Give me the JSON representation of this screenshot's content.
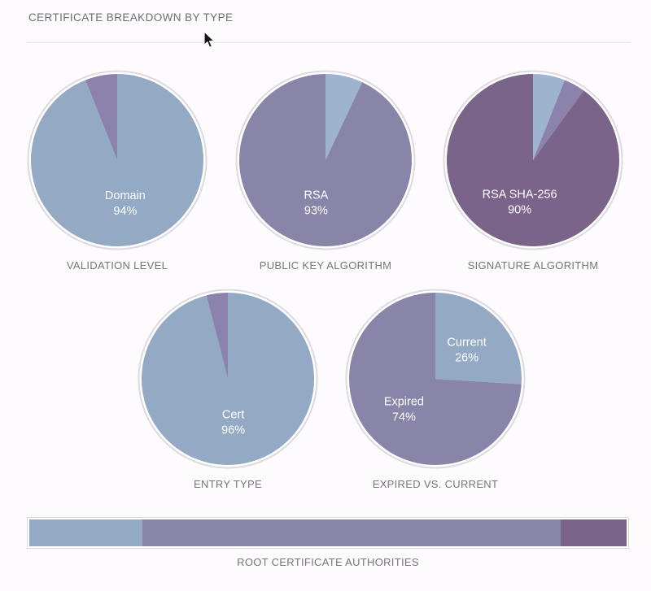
{
  "page": {
    "title": "CERTIFICATE BREAKDOWN BY TYPE"
  },
  "colors": {
    "blue": "#93a9c4",
    "blue_light": "#9db3ce",
    "purple": "#8885a9",
    "violet": "#8c83ad",
    "plum": "#7b6489",
    "ring": "#dcdae0",
    "ring_fill": "#ffffff",
    "label_text": "#ffffff",
    "caption_text": "#77757b",
    "background": "#fdfbfe",
    "divider": "#e8e6eb"
  },
  "chart_data": [
    {
      "type": "pie",
      "title": "VALIDATION LEVEL",
      "slices": [
        {
          "label": "Domain",
          "value": 94,
          "color": "blue"
        },
        {
          "label": "",
          "value": 6,
          "color": "violet"
        }
      ]
    },
    {
      "type": "pie",
      "title": "PUBLIC KEY ALGORITHM",
      "slices": [
        {
          "label": "",
          "value": 7,
          "color": "blue_light"
        },
        {
          "label": "RSA",
          "value": 93,
          "color": "purple"
        }
      ]
    },
    {
      "type": "pie",
      "title": "SIGNATURE ALGORITHM",
      "slices": [
        {
          "label": "",
          "value": 6,
          "color": "blue_light"
        },
        {
          "label": "",
          "value": 4,
          "color": "violet"
        },
        {
          "label": "RSA SHA-256",
          "value": 90,
          "color": "plum"
        }
      ]
    },
    {
      "type": "pie",
      "title": "ENTRY TYPE",
      "slices": [
        {
          "label": "Cert",
          "value": 96,
          "color": "blue"
        },
        {
          "label": "",
          "value": 4,
          "color": "violet"
        }
      ]
    },
    {
      "type": "pie",
      "title": "EXPIRED VS. CURRENT",
      "slices": [
        {
          "label": "Current",
          "value": 26,
          "color": "blue"
        },
        {
          "label": "Expired",
          "value": 74,
          "color": "purple"
        }
      ]
    },
    {
      "type": "bar",
      "title": "ROOT CERTIFICATE AUTHORITIES",
      "orientation": "horizontal-stacked",
      "segments": [
        {
          "value": 19,
          "color": "blue"
        },
        {
          "value": 70,
          "color": "purple"
        },
        {
          "value": 11,
          "color": "plum"
        }
      ]
    }
  ]
}
